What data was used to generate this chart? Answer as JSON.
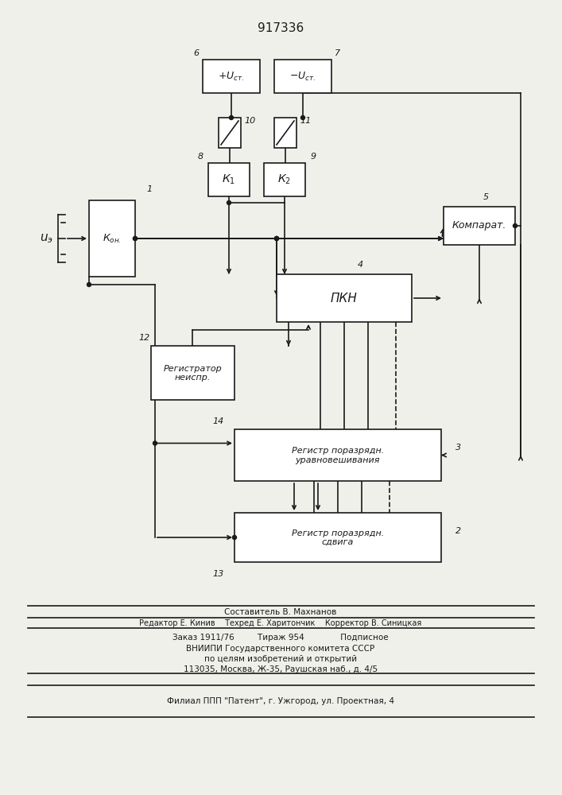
{
  "title": "917336",
  "bg_color": "#f0f0eb",
  "line_color": "#1a1a1a",
  "box_fill": "#ffffff",
  "text_color": "#1a1a1a",
  "footer_lines": [
    "Составитель В. Махнанов",
    "Редактор Е. Кинив    Техред Е. Харитончик    Корректор В. Синицкая",
    "Заказ 1911/76         Тираж 954              Подписное",
    "ВНИИПИ Государственного комитета СССР",
    "по целям изобретений и открытий",
    "113035, Москва, Ж-35, Раушская наб., д. 4/5",
    "Филиал ППП \"Патент\", г. Ужгород, ул. Проектная, 4"
  ]
}
